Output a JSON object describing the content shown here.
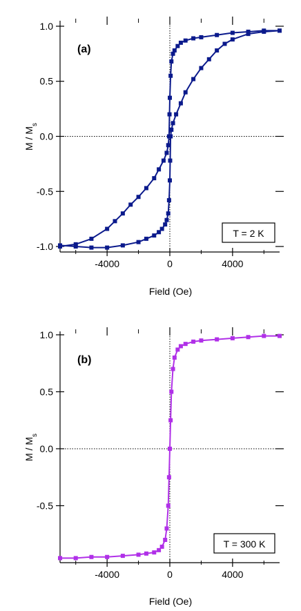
{
  "chart_data": [
    {
      "type": "line",
      "panel_label": "(a)",
      "annotation": "T = 2 K",
      "xlabel": "Field (Oe)",
      "ylabel_main": "M / M",
      "ylabel_sub": "s",
      "xlim": [
        -7000,
        7000
      ],
      "ylim": [
        -1.05,
        1.05
      ],
      "x_ticks": [
        -4000,
        0,
        4000
      ],
      "x_tick_labels": [
        "-4000",
        "0",
        "4000"
      ],
      "y_ticks": [
        -1.0,
        -0.5,
        0.0,
        0.5,
        1.0
      ],
      "y_tick_labels": [
        "-1.0",
        "-0.5",
        "0.0",
        "0.5",
        "1.0"
      ],
      "zero_lines": true,
      "color": "#0b1a8c",
      "series": [
        {
          "x": [
            7000,
            6000,
            5000,
            4000,
            3000,
            2000,
            1500,
            1000,
            700,
            500,
            300,
            200,
            100,
            50,
            0,
            -20,
            -50,
            -100,
            -200,
            -400,
            -700,
            -1000,
            -1500,
            -2000,
            -2500,
            -3000,
            -3500,
            -4000,
            -5000,
            -6000,
            -7000
          ],
          "y": [
            0.96,
            0.96,
            0.95,
            0.94,
            0.92,
            0.9,
            0.89,
            0.87,
            0.85,
            0.82,
            0.78,
            0.75,
            0.68,
            0.55,
            0.35,
            0.2,
            0.0,
            -0.08,
            -0.15,
            -0.22,
            -0.3,
            -0.38,
            -0.47,
            -0.55,
            -0.62,
            -0.7,
            -0.77,
            -0.84,
            -0.93,
            -0.98,
            -1.0
          ]
        },
        {
          "x": [
            -7000,
            -6000,
            -5000,
            -4000,
            -3000,
            -2000,
            -1500,
            -1000,
            -700,
            -500,
            -300,
            -200,
            -100,
            -50,
            0,
            20,
            50,
            100,
            200,
            400,
            700,
            1000,
            1500,
            2000,
            2500,
            3000,
            3500,
            4000,
            5000,
            6000,
            7000
          ],
          "y": [
            -0.99,
            -1.0,
            -1.01,
            -1.01,
            -0.99,
            -0.96,
            -0.93,
            -0.9,
            -0.87,
            -0.84,
            -0.8,
            -0.76,
            -0.7,
            -0.58,
            -0.4,
            -0.22,
            0.0,
            0.06,
            0.12,
            0.2,
            0.3,
            0.4,
            0.52,
            0.62,
            0.7,
            0.78,
            0.84,
            0.88,
            0.93,
            0.95,
            0.96
          ]
        }
      ]
    },
    {
      "type": "line",
      "panel_label": "(b)",
      "annotation": "T = 300 K",
      "xlabel": "Field (Oe)",
      "ylabel_main": "M / M",
      "ylabel_sub": "s",
      "xlim": [
        -7000,
        7000
      ],
      "ylim": [
        -1.0,
        1.03
      ],
      "x_ticks": [
        -4000,
        0,
        4000
      ],
      "x_tick_labels": [
        "-4000",
        "0",
        "4000"
      ],
      "y_ticks": [
        -0.5,
        0.0,
        0.5,
        1.0
      ],
      "y_tick_labels": [
        "-0.5",
        "0.0",
        "0.5",
        "1.0"
      ],
      "zero_lines": true,
      "color": "#b030e8",
      "series": [
        {
          "x": [
            7000,
            6000,
            5000,
            4000,
            3000,
            2000,
            1500,
            1000,
            700,
            500,
            300,
            200,
            100,
            50,
            0,
            -50,
            -100,
            -200,
            -300,
            -500,
            -700,
            -1000,
            -1500,
            -2000,
            -3000,
            -4000,
            -5000,
            -6000,
            -7000
          ],
          "y": [
            0.99,
            0.99,
            0.98,
            0.97,
            0.96,
            0.95,
            0.94,
            0.92,
            0.9,
            0.87,
            0.8,
            0.7,
            0.5,
            0.25,
            0.0,
            -0.25,
            -0.5,
            -0.7,
            -0.8,
            -0.86,
            -0.89,
            -0.91,
            -0.92,
            -0.93,
            -0.94,
            -0.95,
            -0.95,
            -0.96,
            -0.96
          ]
        }
      ]
    }
  ]
}
